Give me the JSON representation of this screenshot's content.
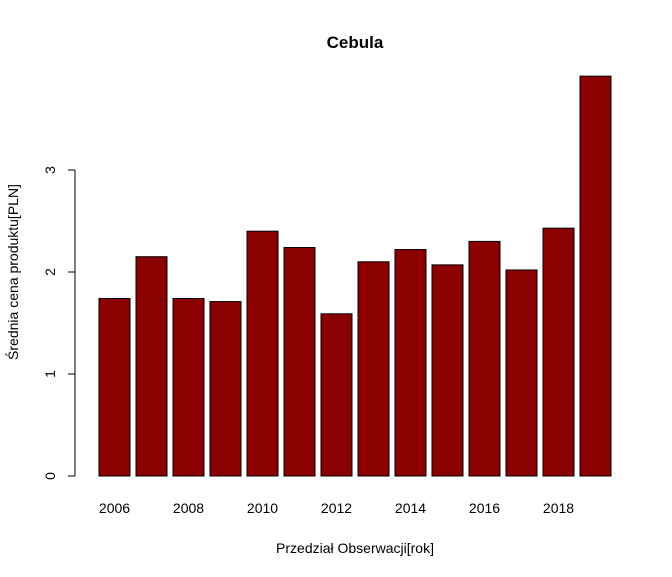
{
  "chart_data": {
    "type": "bar",
    "title": "Cebula",
    "xlabel": "Przedział Obserwacji[rok]",
    "ylabel": "Średnia cena produktu[PLN]",
    "categories": [
      "2006",
      "2007",
      "2008",
      "2009",
      "2010",
      "2011",
      "2012",
      "2013",
      "2014",
      "2015",
      "2016",
      "2017",
      "2018",
      "2019"
    ],
    "values": [
      1.74,
      2.15,
      1.74,
      1.71,
      2.4,
      2.24,
      1.59,
      2.1,
      2.22,
      2.07,
      2.3,
      2.02,
      2.43,
      3.92
    ],
    "x_tick_labels": [
      "2006",
      "2008",
      "2010",
      "2012",
      "2014",
      "2016",
      "2018"
    ],
    "y_ticks": [
      0,
      1,
      2,
      3
    ],
    "ylim": [
      0,
      4
    ],
    "bar_color": "#8b0000",
    "grid": false,
    "legend": "none"
  }
}
